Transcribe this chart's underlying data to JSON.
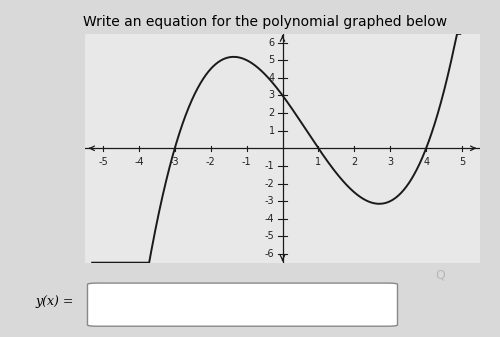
{
  "title": "Write an equation for the polynomial graphed below",
  "title_fontsize": 10,
  "title_style": "normal",
  "xlim": [
    -5.5,
    5.5
  ],
  "ylim": [
    -6.5,
    6.5
  ],
  "xticks": [
    -5,
    -4,
    -3,
    -2,
    -1,
    1,
    2,
    3,
    4,
    5
  ],
  "yticks": [
    -6,
    -5,
    -4,
    -3,
    -2,
    -1,
    1,
    2,
    3,
    4,
    5,
    6
  ],
  "roots": [
    -3,
    1,
    4
  ],
  "scale": 0.25,
  "ylabel_text": "y(x) =",
  "bg_color": "#d9d9d9",
  "plot_bg_color": "#e8e8e8",
  "line_color": "#1a1a1a",
  "axis_color": "#1a1a1a",
  "tick_color": "#222222",
  "tick_fontsize": 7,
  "box_edge_color": "#888888",
  "search_icon_color": "#aaaaaa"
}
